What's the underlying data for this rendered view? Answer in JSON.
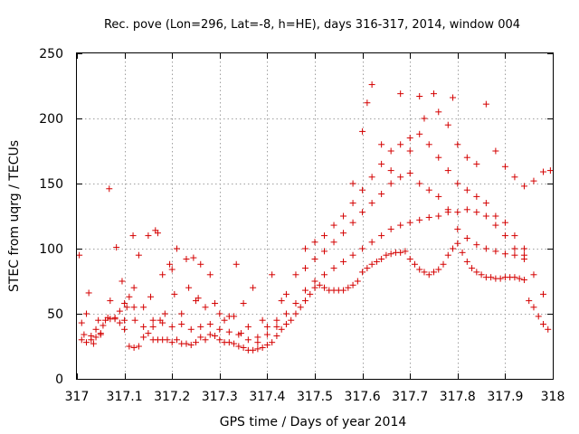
{
  "chart_data": {
    "type": "scatter",
    "title": "Rec. pove (Lon=296, Lat=-8, h=HE), days 316-317, 2014, window 004",
    "xlabel": "GPS time / Days of year 2014",
    "ylabel": "STEC from uqrg / TECUs",
    "xlim": [
      317,
      318
    ],
    "ylim": [
      0,
      250
    ],
    "xticks": [
      317,
      317.1,
      317.2,
      317.3,
      317.4,
      317.5,
      317.6,
      317.7,
      317.8,
      317.9,
      318
    ],
    "xtick_labels": [
      "317",
      "317.1",
      "317.2",
      "317.3",
      "317.4",
      "317.5",
      "317.6",
      "317.7",
      "317.8",
      "317.9",
      "318"
    ],
    "yticks": [
      0,
      50,
      100,
      150,
      200,
      250
    ],
    "ytick_labels": [
      "0",
      "50",
      "100",
      "150",
      "200",
      "250"
    ],
    "grid": true,
    "marker": "+",
    "color": "#d40000",
    "series": [
      {
        "points": [
          [
            317.005,
            95
          ],
          [
            317.01,
            30
          ],
          [
            317.015,
            34
          ],
          [
            317.02,
            28
          ],
          [
            317.025,
            66
          ],
          [
            317.03,
            33
          ],
          [
            317.035,
            27
          ],
          [
            317.04,
            32
          ],
          [
            317.045,
            45
          ],
          [
            317.05,
            35
          ],
          [
            317.055,
            41
          ],
          [
            317.065,
            47
          ],
          [
            317.068,
            146
          ],
          [
            317.07,
            60
          ],
          [
            317.08,
            46
          ],
          [
            317.083,
            101
          ],
          [
            317.09,
            52
          ],
          [
            317.095,
            75
          ],
          [
            317.1,
            45
          ],
          [
            317.105,
            55
          ],
          [
            317.11,
            63
          ],
          [
            317.118,
            110
          ],
          [
            317.12,
            70
          ],
          [
            317.122,
            45
          ],
          [
            317.13,
            95
          ],
          [
            317.14,
            55
          ],
          [
            317.15,
            110
          ],
          [
            317.155,
            63
          ],
          [
            317.16,
            40
          ],
          [
            317.165,
            114
          ],
          [
            317.17,
            112
          ],
          [
            317.175,
            45
          ],
          [
            317.18,
            80
          ],
          [
            317.185,
            50
          ],
          [
            317.195,
            88
          ],
          [
            317.2,
            84
          ],
          [
            317.205,
            65
          ],
          [
            317.21,
            100
          ],
          [
            317.22,
            50
          ],
          [
            317.23,
            92
          ],
          [
            317.235,
            70
          ],
          [
            317.245,
            93
          ],
          [
            317.25,
            60
          ],
          [
            317.255,
            62
          ],
          [
            317.26,
            88
          ],
          [
            317.27,
            55
          ],
          [
            317.28,
            80
          ],
          [
            317.29,
            58
          ],
          [
            317.3,
            50
          ],
          [
            317.31,
            45
          ],
          [
            317.32,
            48
          ],
          [
            317.33,
            48
          ],
          [
            317.335,
            88
          ],
          [
            317.345,
            35
          ],
          [
            317.35,
            58
          ],
          [
            317.36,
            40
          ],
          [
            317.37,
            70
          ],
          [
            317.38,
            28
          ],
          [
            317.39,
            45
          ],
          [
            317.4,
            40
          ],
          [
            317.41,
            80
          ],
          [
            317.42,
            40
          ],
          [
            317.43,
            60
          ],
          [
            317.44,
            65
          ]
        ]
      },
      {
        "points": [
          [
            317.01,
            43
          ],
          [
            317.02,
            50
          ],
          [
            317.03,
            30
          ],
          [
            317.04,
            38
          ],
          [
            317.05,
            34
          ],
          [
            317.06,
            45
          ],
          [
            317.07,
            46
          ],
          [
            317.08,
            47
          ],
          [
            317.09,
            43
          ],
          [
            317.1,
            38
          ],
          [
            317.11,
            25
          ],
          [
            317.12,
            24
          ],
          [
            317.13,
            25
          ],
          [
            317.14,
            32
          ],
          [
            317.15,
            35
          ],
          [
            317.16,
            30
          ],
          [
            317.17,
            30
          ],
          [
            317.18,
            30
          ],
          [
            317.19,
            30
          ],
          [
            317.2,
            28
          ],
          [
            317.21,
            30
          ],
          [
            317.22,
            27
          ],
          [
            317.23,
            27
          ],
          [
            317.24,
            26
          ],
          [
            317.25,
            28
          ],
          [
            317.26,
            32
          ],
          [
            317.27,
            30
          ],
          [
            317.28,
            34
          ],
          [
            317.29,
            33
          ],
          [
            317.3,
            30
          ],
          [
            317.31,
            28
          ],
          [
            317.32,
            28
          ],
          [
            317.33,
            27
          ],
          [
            317.34,
            25
          ],
          [
            317.35,
            24
          ],
          [
            317.36,
            22
          ],
          [
            317.37,
            22
          ],
          [
            317.38,
            23
          ],
          [
            317.39,
            24
          ],
          [
            317.4,
            26
          ],
          [
            317.41,
            28
          ],
          [
            317.42,
            33
          ],
          [
            317.43,
            38
          ],
          [
            317.44,
            42
          ],
          [
            317.45,
            45
          ],
          [
            317.46,
            50
          ],
          [
            317.47,
            55
          ],
          [
            317.48,
            60
          ],
          [
            317.49,
            65
          ],
          [
            317.5,
            70
          ],
          [
            317.51,
            72
          ],
          [
            317.52,
            70
          ],
          [
            317.53,
            68
          ],
          [
            317.54,
            68
          ],
          [
            317.55,
            68
          ],
          [
            317.56,
            68
          ],
          [
            317.57,
            70
          ],
          [
            317.58,
            72
          ],
          [
            317.59,
            75
          ],
          [
            317.6,
            82
          ],
          [
            317.61,
            85
          ],
          [
            317.62,
            88
          ],
          [
            317.63,
            90
          ],
          [
            317.64,
            92
          ],
          [
            317.65,
            95
          ],
          [
            317.66,
            96
          ],
          [
            317.67,
            97
          ],
          [
            317.68,
            97
          ],
          [
            317.69,
            98
          ],
          [
            317.7,
            92
          ],
          [
            317.71,
            88
          ],
          [
            317.72,
            84
          ],
          [
            317.73,
            82
          ],
          [
            317.74,
            80
          ],
          [
            317.75,
            82
          ],
          [
            317.76,
            84
          ],
          [
            317.77,
            88
          ],
          [
            317.78,
            95
          ],
          [
            317.79,
            100
          ],
          [
            317.8,
            104
          ],
          [
            317.81,
            97
          ],
          [
            317.82,
            90
          ],
          [
            317.83,
            85
          ],
          [
            317.84,
            82
          ],
          [
            317.85,
            80
          ],
          [
            317.86,
            78
          ],
          [
            317.87,
            78
          ],
          [
            317.88,
            77
          ],
          [
            317.89,
            77
          ],
          [
            317.9,
            78
          ],
          [
            317.91,
            78
          ],
          [
            317.92,
            78
          ],
          [
            317.93,
            77
          ],
          [
            317.94,
            76
          ],
          [
            317.95,
            60
          ],
          [
            317.96,
            55
          ],
          [
            317.97,
            48
          ],
          [
            317.98,
            42
          ],
          [
            317.99,
            38
          ]
        ]
      },
      {
        "points": [
          [
            317.1,
            58
          ],
          [
            317.12,
            55
          ],
          [
            317.14,
            40
          ],
          [
            317.16,
            45
          ],
          [
            317.18,
            43
          ],
          [
            317.2,
            40
          ],
          [
            317.22,
            42
          ],
          [
            317.24,
            38
          ],
          [
            317.26,
            40
          ],
          [
            317.28,
            42
          ],
          [
            317.3,
            38
          ],
          [
            317.32,
            36
          ],
          [
            317.34,
            34
          ],
          [
            317.36,
            30
          ],
          [
            317.38,
            32
          ],
          [
            317.4,
            34
          ],
          [
            317.42,
            45
          ],
          [
            317.44,
            50
          ],
          [
            317.46,
            58
          ],
          [
            317.48,
            68
          ],
          [
            317.5,
            75
          ],
          [
            317.52,
            80
          ],
          [
            317.54,
            85
          ],
          [
            317.56,
            90
          ],
          [
            317.58,
            95
          ],
          [
            317.6,
            100
          ],
          [
            317.62,
            105
          ],
          [
            317.64,
            110
          ],
          [
            317.66,
            115
          ],
          [
            317.68,
            118
          ],
          [
            317.7,
            120
          ],
          [
            317.72,
            122
          ],
          [
            317.74,
            124
          ],
          [
            317.76,
            125
          ],
          [
            317.78,
            128
          ],
          [
            317.8,
            128
          ],
          [
            317.82,
            130
          ],
          [
            317.84,
            128
          ],
          [
            317.86,
            125
          ],
          [
            317.88,
            118
          ],
          [
            317.9,
            110
          ],
          [
            317.92,
            100
          ],
          [
            317.94,
            95
          ],
          [
            317.96,
            80
          ],
          [
            317.98,
            65
          ]
        ]
      },
      {
        "points": [
          [
            317.46,
            80
          ],
          [
            317.48,
            85
          ],
          [
            317.5,
            92
          ],
          [
            317.52,
            98
          ],
          [
            317.54,
            105
          ],
          [
            317.56,
            112
          ],
          [
            317.58,
            120
          ],
          [
            317.6,
            128
          ],
          [
            317.62,
            135
          ],
          [
            317.64,
            142
          ],
          [
            317.66,
            150
          ],
          [
            317.68,
            155
          ],
          [
            317.7,
            158
          ],
          [
            317.72,
            150
          ],
          [
            317.74,
            145
          ],
          [
            317.76,
            140
          ],
          [
            317.78,
            130
          ],
          [
            317.8,
            115
          ],
          [
            317.82,
            108
          ],
          [
            317.84,
            103
          ],
          [
            317.86,
            100
          ],
          [
            317.88,
            98
          ],
          [
            317.9,
            96
          ],
          [
            317.92,
            95
          ],
          [
            317.94,
            92
          ]
        ]
      },
      {
        "points": [
          [
            317.48,
            100
          ],
          [
            317.5,
            105
          ],
          [
            317.52,
            110
          ],
          [
            317.54,
            118
          ],
          [
            317.56,
            125
          ],
          [
            317.58,
            135
          ],
          [
            317.6,
            145
          ],
          [
            317.62,
            155
          ],
          [
            317.64,
            165
          ],
          [
            317.66,
            175
          ],
          [
            317.68,
            180
          ],
          [
            317.7,
            185
          ],
          [
            317.72,
            188
          ],
          [
            317.74,
            180
          ],
          [
            317.76,
            170
          ],
          [
            317.78,
            160
          ],
          [
            317.8,
            150
          ],
          [
            317.82,
            145
          ],
          [
            317.84,
            140
          ],
          [
            317.86,
            135
          ],
          [
            317.88,
            125
          ],
          [
            317.9,
            120
          ],
          [
            317.92,
            110
          ],
          [
            317.94,
            100
          ]
        ]
      },
      {
        "points": [
          [
            317.58,
            150
          ],
          [
            317.6,
            190
          ],
          [
            317.61,
            212
          ],
          [
            317.62,
            226
          ],
          [
            317.64,
            180
          ],
          [
            317.66,
            160
          ],
          [
            317.68,
            219
          ],
          [
            317.7,
            175
          ],
          [
            317.72,
            217
          ],
          [
            317.73,
            200
          ],
          [
            317.75,
            219
          ],
          [
            317.76,
            205
          ],
          [
            317.78,
            195
          ],
          [
            317.79,
            216
          ],
          [
            317.8,
            180
          ],
          [
            317.82,
            170
          ],
          [
            317.84,
            165
          ],
          [
            317.86,
            211
          ],
          [
            317.88,
            175
          ],
          [
            317.9,
            163
          ],
          [
            317.92,
            155
          ],
          [
            317.94,
            148
          ],
          [
            317.96,
            152
          ],
          [
            317.98,
            159
          ],
          [
            317.995,
            160
          ]
        ]
      }
    ]
  }
}
